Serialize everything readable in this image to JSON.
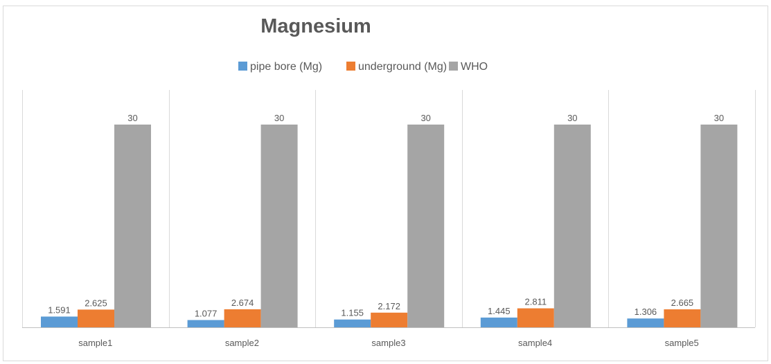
{
  "chart_data": {
    "type": "bar",
    "title": "Magnesium",
    "xlabel": "",
    "ylabel": "",
    "categories": [
      "sample1",
      "sample2",
      "sample3",
      "sample4",
      "sample5"
    ],
    "series": [
      {
        "name": "pipe bore (Mg)",
        "color": "#5b9bd5",
        "values": [
          1.591,
          1.077,
          1.155,
          1.445,
          1.306
        ],
        "labels": [
          "1.591",
          "1.077",
          "1.155",
          "1.445",
          "1.306"
        ]
      },
      {
        "name": "underground (Mg)",
        "color": "#ed7d31",
        "values": [
          2.625,
          2.674,
          2.172,
          2.811,
          2.665
        ],
        "labels": [
          "2.625",
          "2.674",
          "2.172",
          "2.811",
          "2.665"
        ]
      },
      {
        "name": "WHO",
        "color": "#a5a5a5",
        "values": [
          30,
          30,
          30,
          30,
          30
        ],
        "labels": [
          "30",
          "30",
          "30",
          "30",
          "30"
        ]
      }
    ],
    "ylim": [
      0,
      30
    ],
    "legend_position": "top",
    "grid": "vertical category separators",
    "data_labels": true
  }
}
